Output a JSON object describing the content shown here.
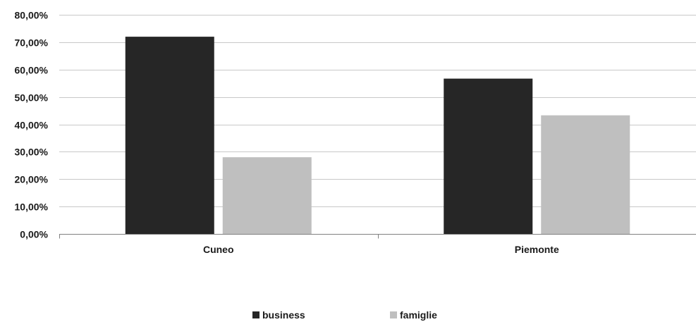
{
  "chart_data": {
    "type": "bar",
    "categories": [
      "Cuneo",
      "Piemonte"
    ],
    "series": [
      {
        "name": "business",
        "values": [
          72.0,
          56.7
        ],
        "color": "#262626"
      },
      {
        "name": "famiglie",
        "values": [
          28.0,
          43.3
        ],
        "color": "#bfbfbf"
      }
    ],
    "ylim": [
      0,
      80
    ],
    "yticks": [
      0,
      10,
      20,
      30,
      40,
      50,
      60,
      70,
      80
    ],
    "ytick_labels": [
      "0,00%",
      "10,00%",
      "20,00%",
      "30,00%",
      "40,00%",
      "50,00%",
      "60,00%",
      "70,00%",
      "80,00%"
    ],
    "grid": true,
    "legend_position": "bottom",
    "title": "",
    "xlabel": "",
    "ylabel": ""
  }
}
